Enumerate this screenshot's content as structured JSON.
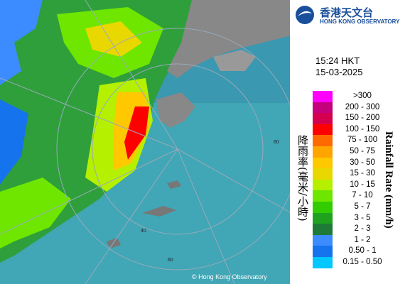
{
  "header": {
    "logo_cn": "香港天文台",
    "logo_en": "HONG KONG OBSERVATORY"
  },
  "timestamp": {
    "time": "15:24 HKT",
    "date": "15-03-2025"
  },
  "legend": {
    "title_cn": "降雨率(毫米/小時)",
    "title_en": "Rainfall Rate (mm/h)",
    "items": [
      {
        "label": ">300",
        "color": "#ff00ff"
      },
      {
        "label": "200 - 300",
        "color": "#c4007d"
      },
      {
        "label": "150 - 200",
        "color": "#d4004f"
      },
      {
        "label": "100 - 150",
        "color": "#ff0000"
      },
      {
        "label": "75 - 100",
        "color": "#ff6a00"
      },
      {
        "label": "50 - 75",
        "color": "#ffa500"
      },
      {
        "label": "30 - 50",
        "color": "#ffc800"
      },
      {
        "label": "15 - 30",
        "color": "#e8d800"
      },
      {
        "label": "10 - 15",
        "color": "#b4f000"
      },
      {
        "label": "7 - 10",
        "color": "#6ee600"
      },
      {
        "label": "5 - 7",
        "color": "#33cc00"
      },
      {
        "label": "3 - 5",
        "color": "#1fa31f"
      },
      {
        "label": "2 - 3",
        "color": "#1e7a37"
      },
      {
        "label": "1 - 2",
        "color": "#3d8cff"
      },
      {
        "label": "0.50 - 1",
        "color": "#1673ee"
      },
      {
        "label": "0.15 - 0.50",
        "color": "#00c8ff"
      }
    ]
  },
  "map": {
    "ring_labels": [
      "60",
      "40",
      "60"
    ],
    "copyright": "© Hong Kong Observatory"
  }
}
